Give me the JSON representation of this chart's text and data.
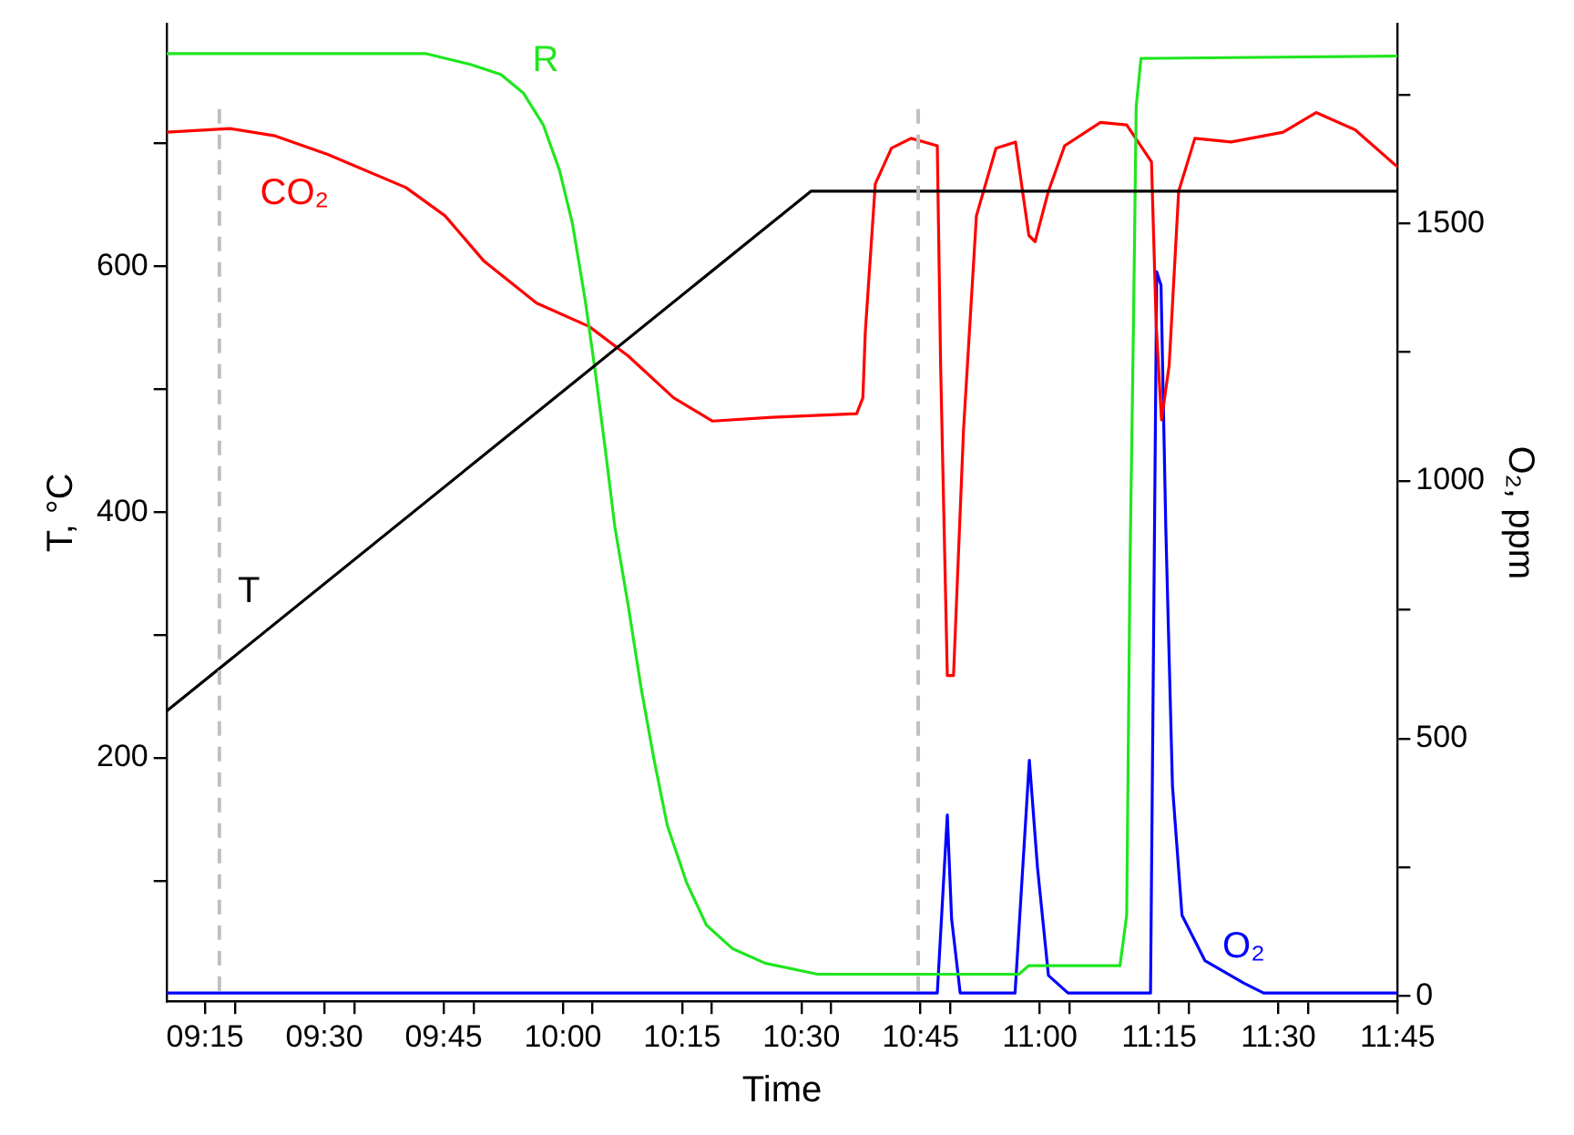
{
  "chart_data": {
    "type": "line",
    "xlabel": "Time",
    "ylabel": "T, °C",
    "y2label": "O₂, ppm",
    "xlim": [
      9.169,
      11.75
    ],
    "xticks": [
      {
        "value": 9.25,
        "label": "09:15"
      },
      {
        "value": 9.3125,
        "label": null
      },
      {
        "value": 9.5,
        "label": "09:30"
      },
      {
        "value": 9.5625,
        "label": null
      },
      {
        "value": 9.75,
        "label": "09:45"
      },
      {
        "value": 9.8125,
        "label": null
      },
      {
        "value": 10,
        "label": "10:00"
      },
      {
        "value": 10.0625,
        "label": null
      },
      {
        "value": 10.25,
        "label": "10:15"
      },
      {
        "value": 10.3125,
        "label": null
      },
      {
        "value": 10.5,
        "label": "10:30"
      },
      {
        "value": 10.5625,
        "label": null
      },
      {
        "value": 10.75,
        "label": "10:45"
      },
      {
        "value": 10.8125,
        "label": null
      },
      {
        "value": 11,
        "label": "11:00"
      },
      {
        "value": 11.0625,
        "label": null
      },
      {
        "value": 11.25,
        "label": "11:15"
      },
      {
        "value": 11.3125,
        "label": null
      },
      {
        "value": 11.5,
        "label": "11:30"
      },
      {
        "value": 11.5625,
        "label": null
      },
      {
        "value": 11.75,
        "label": "11:45"
      }
    ],
    "ylim": [
      2,
      797
    ],
    "yticks": [
      {
        "value": 100,
        "label": null
      },
      200,
      {
        "value": 300,
        "label": null
      },
      400,
      {
        "value": 500,
        "label": null
      },
      600,
      {
        "value": 700,
        "label": null
      }
    ],
    "y2lim": [
      -10,
      1887
    ],
    "y2ticks": [
      0,
      {
        "value": 250,
        "label": null
      },
      500,
      {
        "value": 750,
        "label": null
      },
      1000,
      {
        "value": 1250,
        "label": null
      },
      1500,
      {
        "value": 1750,
        "label": null
      }
    ],
    "grid": false,
    "legend": false,
    "marker": "none",
    "line_style": "solid",
    "ref_lines": [
      {
        "axis": "x",
        "value": 9.28,
        "color": "#c0c0c0",
        "line_style": "dashed"
      },
      {
        "axis": "x",
        "value": 10.745,
        "color": "#c0c0c0",
        "line_style": "dashed"
      }
    ],
    "series": [
      {
        "name": "T",
        "color": "#000000",
        "x": [
          9.169,
          10.52,
          11.75
        ],
        "values": [
          238,
          661,
          661
        ]
      },
      {
        "name": "R",
        "color": "#1fe61f",
        "x": [
          9.169,
          9.712,
          9.808,
          9.87,
          9.917,
          9.959,
          9.993,
          10.02,
          10.047,
          10.068,
          10.089,
          10.109,
          10.137,
          10.164,
          10.191,
          10.219,
          10.26,
          10.301,
          10.355,
          10.424,
          10.534,
          10.956,
          10.977,
          11.168,
          11.182,
          11.189,
          11.196,
          11.202,
          11.212,
          11.75
        ],
        "values": [
          773,
          773,
          764,
          756,
          741,
          715,
          678,
          635,
          572,
          514,
          451,
          388,
          324,
          257,
          199,
          145,
          98,
          64,
          45,
          33,
          24,
          24,
          31,
          31,
          72,
          357,
          546,
          730,
          769,
          771
        ]
      },
      {
        "name": "CO₂",
        "color": "#ff0000",
        "x": [
          9.169,
          9.302,
          9.397,
          9.507,
          9.671,
          9.753,
          9.835,
          9.945,
          10.055,
          10.137,
          10.232,
          10.314,
          10.438,
          10.616,
          10.629,
          10.634,
          10.655,
          10.689,
          10.73,
          10.785,
          10.792,
          10.806,
          10.819,
          10.84,
          10.867,
          10.908,
          10.949,
          10.977,
          10.99,
          11.018,
          11.052,
          11.127,
          11.182,
          11.234,
          11.244,
          11.255,
          11.271,
          11.291,
          11.325,
          11.401,
          11.51,
          11.579,
          11.661,
          11.743,
          11.75
        ],
        "values": [
          709,
          712,
          706,
          691,
          664,
          641,
          604,
          570,
          551,
          527,
          493,
          474,
          477,
          480,
          493,
          546,
          667,
          696,
          704,
          698,
          519,
          267,
          267,
          467,
          641,
          696,
          701,
          625,
          620,
          661,
          698,
          717,
          715,
          685,
          551,
          475,
          519,
          661,
          704,
          701,
          709,
          725,
          711,
          683,
          681
        ]
      },
      {
        "name": "O₂",
        "color": "#0000ff",
        "axis": "y2",
        "x": [
          9.169,
          10.785,
          10.806,
          10.815,
          10.833,
          10.948,
          10.978,
          10.995,
          11.018,
          11.059,
          11.232,
          11.245,
          11.254,
          11.264,
          11.278,
          11.298,
          11.346,
          11.428,
          11.469,
          11.75
        ],
        "values": [
          6,
          6,
          352,
          150,
          6,
          6,
          458,
          250,
          40,
          6,
          6,
          1406,
          1380,
          910,
          408,
          157,
          69,
          25,
          6,
          6
        ]
      }
    ]
  }
}
